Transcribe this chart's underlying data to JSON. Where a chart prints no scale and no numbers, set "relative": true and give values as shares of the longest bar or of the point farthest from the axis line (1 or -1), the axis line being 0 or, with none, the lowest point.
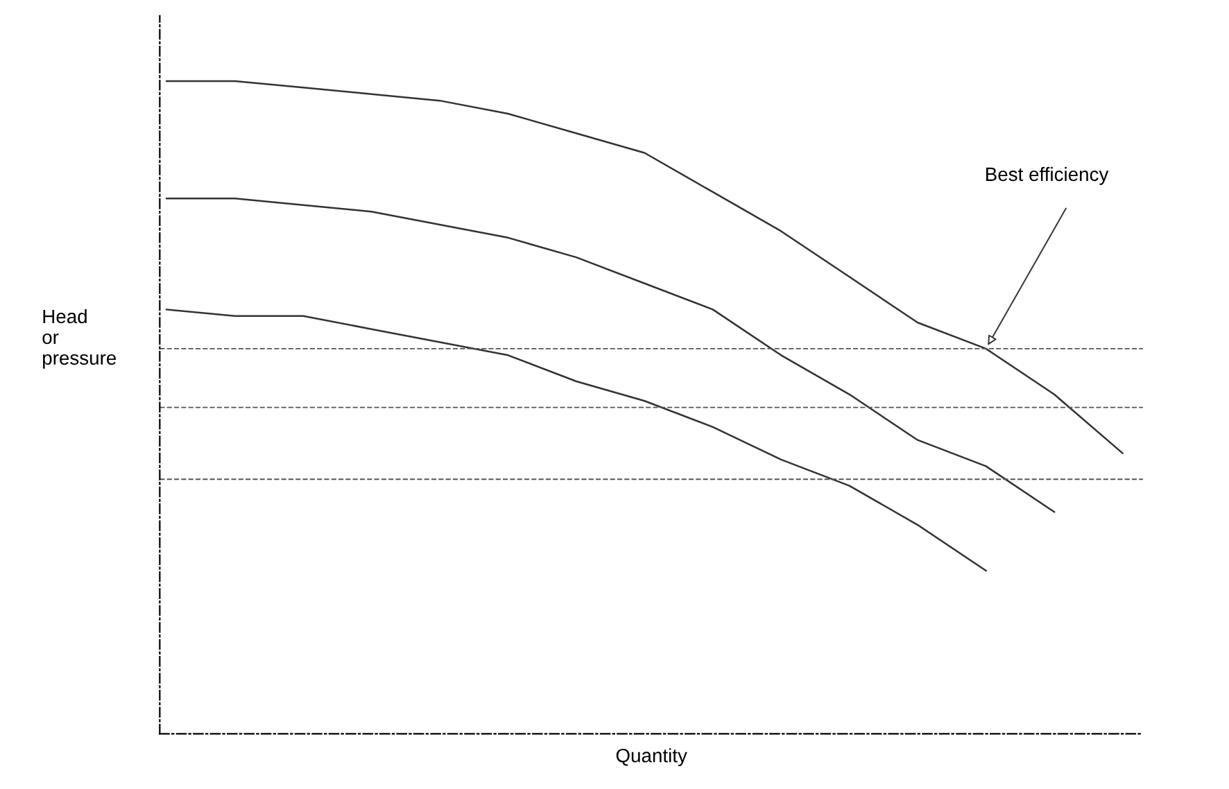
{
  "chart_data": {
    "type": "line",
    "relative": true,
    "xlabel": "Quantity",
    "ylabel": "Head\nor\npressure",
    "categories": [
      null,
      null,
      null,
      null,
      null,
      null,
      null,
      null,
      null,
      null,
      null,
      null,
      null,
      null,
      null
    ],
    "series": [
      {
        "color": "#333333",
        "values": [
          1.0,
          1.0,
          0.99,
          0.98,
          0.97,
          0.95,
          0.92,
          0.89,
          0.83,
          0.77,
          0.7,
          0.63,
          0.59,
          0.52,
          0.43
        ]
      },
      {
        "color": "#333333",
        "values": [
          0.82,
          0.82,
          0.81,
          0.8,
          0.78,
          0.76,
          0.73,
          0.69,
          0.65,
          0.58,
          0.52,
          0.45,
          0.41,
          0.34,
          null
        ]
      },
      {
        "color": "#333333",
        "values": [
          0.65,
          0.64,
          0.64,
          0.62,
          0.6,
          0.58,
          0.54,
          0.51,
          0.47,
          0.42,
          0.38,
          0.32,
          0.25,
          null,
          null
        ]
      }
    ],
    "ref_lines": [
      {
        "axis": "y",
        "value": 0.59,
        "line_style": "dashed",
        "color": "#555555"
      },
      {
        "axis": "y",
        "value": 0.5,
        "line_style": "dashed",
        "color": "#555555"
      },
      {
        "axis": "y",
        "value": 0.39,
        "line_style": "dashed",
        "color": "#555555"
      }
    ],
    "annotations": [
      "Best efficiency"
    ],
    "grid": false,
    "legend": false,
    "marker": "none",
    "line_style": "solid"
  }
}
